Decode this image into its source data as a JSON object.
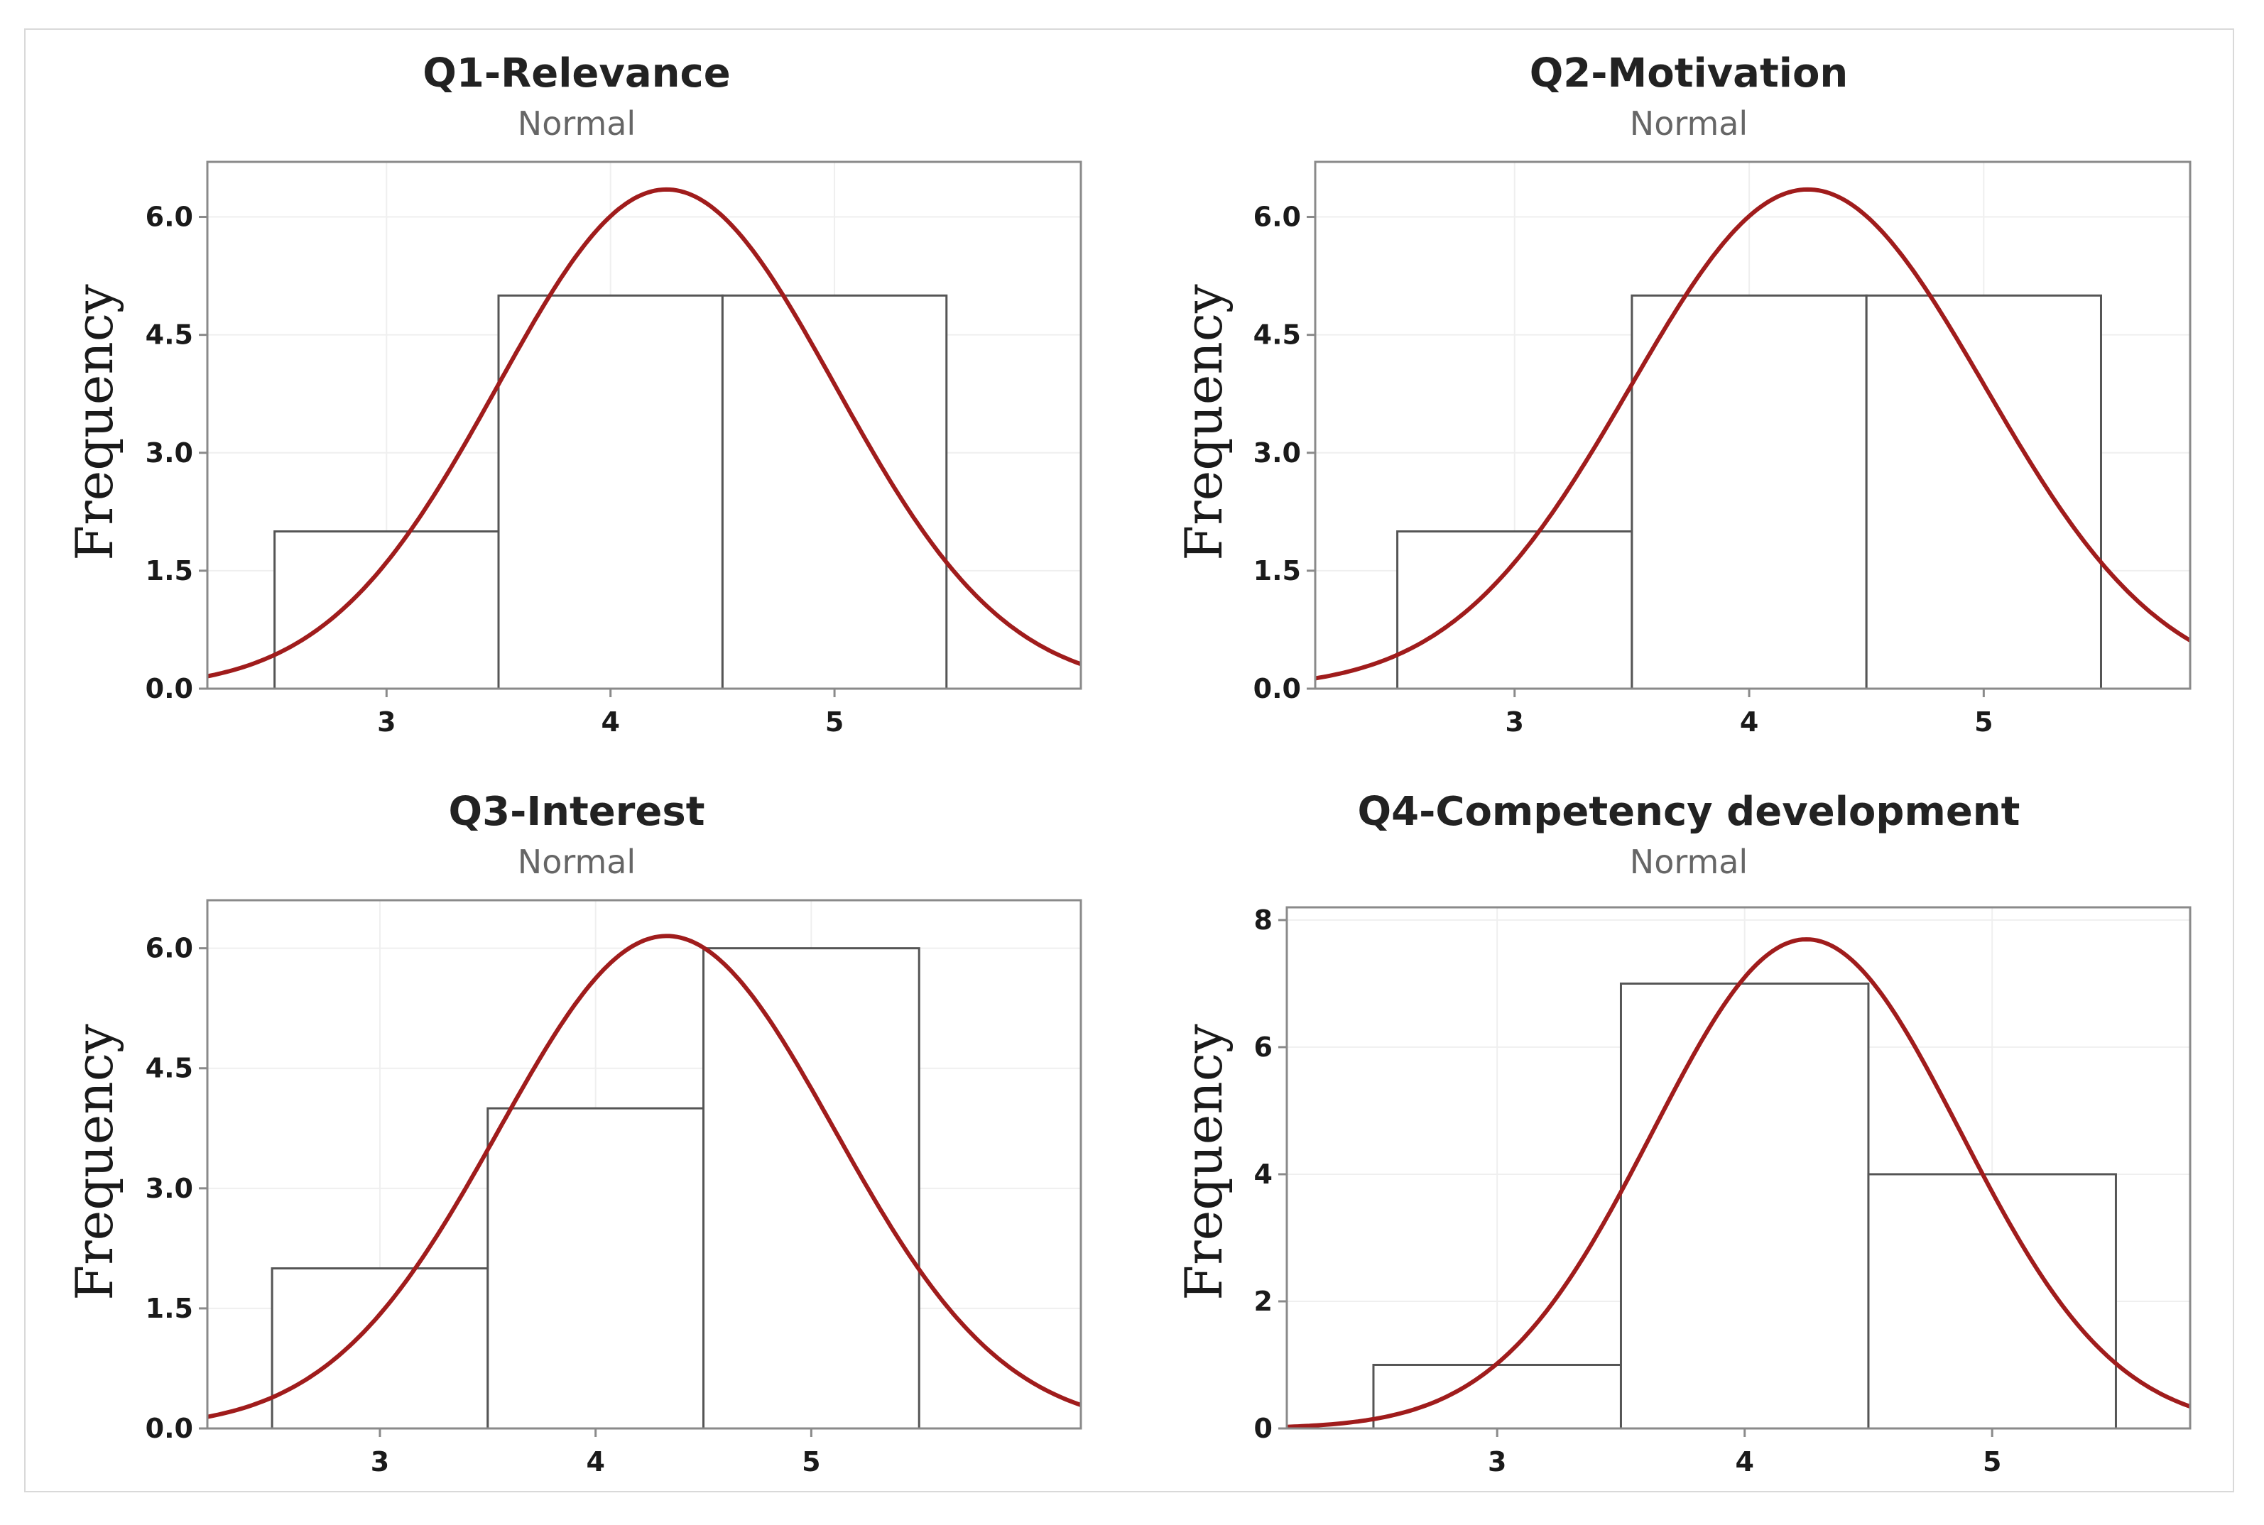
{
  "colors": {
    "curve": "#a01c1c",
    "bar_fill": "#ffffff",
    "bar_edge": "#555555"
  },
  "chart_data": [
    {
      "type": "bar",
      "title": "Q1-Relevance",
      "subtitle": "Normal",
      "ylabel": "Frequency",
      "xlabel": "",
      "categories": [
        "3",
        "4",
        "5"
      ],
      "bins": [
        [
          2.5,
          3.5
        ],
        [
          3.5,
          4.5
        ],
        [
          4.5,
          5.5
        ]
      ],
      "values": [
        2,
        5,
        5
      ],
      "xticks": [
        3,
        4,
        5
      ],
      "xtick_labels": [
        "3",
        "4",
        "5"
      ],
      "yticks": [
        0,
        1.5,
        3,
        4.5,
        6
      ],
      "ytick_labels": [
        "0.0",
        "1.5",
        "3.0",
        "4.5",
        "6.0"
      ],
      "xlim": [
        2.2,
        6.1
      ],
      "ylim": [
        0,
        6.7
      ],
      "normal_fit": {
        "mean": 4.25,
        "sd": 0.754,
        "n": 12,
        "binwidth": 1
      }
    },
    {
      "type": "bar",
      "title": "Q2-Motivation",
      "subtitle": "Normal",
      "ylabel": "Frequency",
      "xlabel": "",
      "categories": [
        "3",
        "4",
        "5"
      ],
      "bins": [
        [
          2.5,
          3.5
        ],
        [
          3.5,
          4.5
        ],
        [
          4.5,
          5.5
        ]
      ],
      "values": [
        2,
        5,
        5
      ],
      "xticks": [
        3,
        4,
        5
      ],
      "xtick_labels": [
        "3",
        "4",
        "5"
      ],
      "yticks": [
        0,
        1.5,
        3,
        4.5,
        6
      ],
      "ytick_labels": [
        "0.0",
        "1.5",
        "3.0",
        "4.5",
        "6.0"
      ],
      "xlim": [
        2.15,
        5.88
      ],
      "ylim": [
        0,
        6.7
      ],
      "normal_fit": {
        "mean": 4.25,
        "sd": 0.754,
        "n": 12,
        "binwidth": 1
      }
    },
    {
      "type": "bar",
      "title": "Q3-Interest",
      "subtitle": "Normal",
      "ylabel": "Frequency",
      "xlabel": "",
      "categories": [
        "3",
        "4",
        "5"
      ],
      "bins": [
        [
          2.5,
          3.5
        ],
        [
          3.5,
          4.5
        ],
        [
          4.5,
          5.5
        ]
      ],
      "values": [
        2,
        4,
        6
      ],
      "xticks": [
        3,
        4,
        5
      ],
      "xtick_labels": [
        "3",
        "4",
        "5"
      ],
      "yticks": [
        0,
        1.5,
        3,
        4.5,
        6
      ],
      "ytick_labels": [
        "0.0",
        "1.5",
        "3.0",
        "4.5",
        "6.0"
      ],
      "xlim": [
        2.2,
        6.25
      ],
      "ylim": [
        0,
        6.6
      ],
      "normal_fit": {
        "mean": 4.33,
        "sd": 0.778,
        "n": 12,
        "binwidth": 1
      }
    },
    {
      "type": "bar",
      "title": "Q4-Competency development",
      "subtitle": "Normal",
      "ylabel": "Frequency",
      "xlabel": "",
      "categories": [
        "3",
        "4",
        "5"
      ],
      "bins": [
        [
          2.5,
          3.5
        ],
        [
          3.5,
          4.5
        ],
        [
          4.5,
          5.5
        ]
      ],
      "values": [
        1,
        7,
        4
      ],
      "xticks": [
        3,
        4,
        5
      ],
      "xtick_labels": [
        "3",
        "4",
        "5"
      ],
      "yticks": [
        0,
        2,
        4,
        6,
        8
      ],
      "ytick_labels": [
        "0",
        "2",
        "4",
        "6",
        "8"
      ],
      "xlim": [
        2.15,
        5.8
      ],
      "ylim": [
        0,
        8.2
      ],
      "normal_fit": {
        "mean": 4.25,
        "sd": 0.622,
        "n": 12,
        "binwidth": 1
      }
    }
  ]
}
